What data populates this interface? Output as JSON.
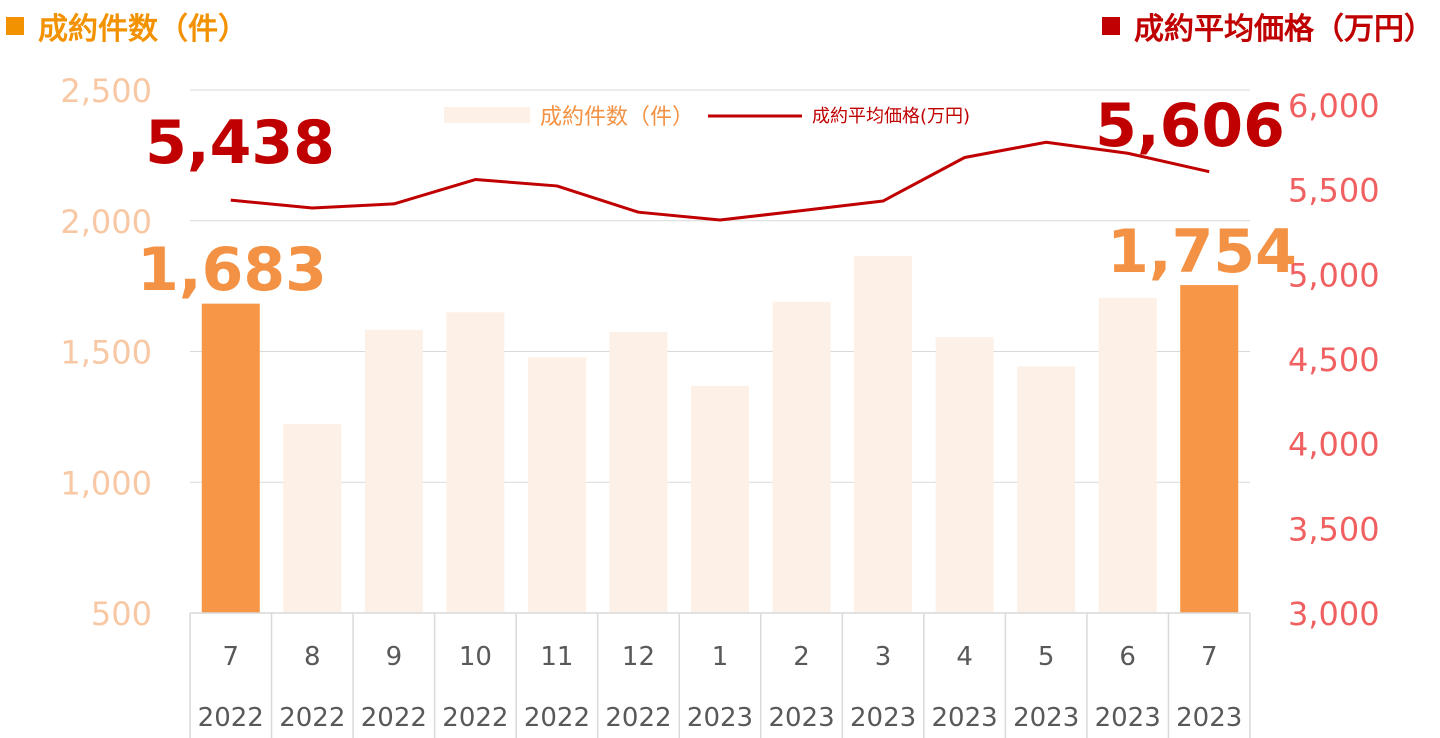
{
  "header_left": {
    "label": "成約件数（件）",
    "color": "#f39200"
  },
  "header_right": {
    "label": "成約平均価格（万円）",
    "color": "#c00000"
  },
  "colors": {
    "bar_highlight": "#f79646",
    "bar_light": "#fdf0e6",
    "line": "#c00000",
    "left_tick": "#f8c8a4",
    "right_tick": "#f06060",
    "grid": "#d9d9d9",
    "category_text": "#595959",
    "bar_label": "#f39244",
    "line_label": "#c00000"
  },
  "chart_data": {
    "type": "bar+line",
    "categories": [
      "7",
      "8",
      "9",
      "10",
      "11",
      "12",
      "1",
      "2",
      "3",
      "4",
      "5",
      "6",
      "7"
    ],
    "years": [
      "2022",
      "2022",
      "2022",
      "2022",
      "2022",
      "2022",
      "2023",
      "2023",
      "2023",
      "2023",
      "2023",
      "2023",
      "2023"
    ],
    "series": [
      {
        "name": "成約件数（件）",
        "type": "bar",
        "axis": "left",
        "values": [
          1683,
          1222,
          1583,
          1650,
          1478,
          1575,
          1368,
          1690,
          1865,
          1555,
          1443,
          1705,
          1754
        ],
        "highlight": [
          true,
          false,
          false,
          false,
          false,
          false,
          false,
          false,
          false,
          false,
          false,
          false,
          true
        ]
      },
      {
        "name": "成約平均価格(万円)",
        "type": "line",
        "axis": "right",
        "values": [
          5438,
          5392,
          5416,
          5560,
          5522,
          5367,
          5321,
          5376,
          5433,
          5690,
          5780,
          5715,
          5606
        ]
      }
    ],
    "left_axis": {
      "range": [
        500,
        2500
      ],
      "ticks": [
        "500",
        "1,000",
        "1,500",
        "2,000",
        "2,500"
      ],
      "tick_values": [
        500,
        1000,
        1500,
        2000,
        2500
      ]
    },
    "right_axis": {
      "range": [
        3000,
        6000
      ],
      "ticks": [
        "3,000",
        "3,500",
        "4,000",
        "4,500",
        "5,000",
        "5,500",
        "6,000"
      ],
      "tick_values": [
        3000,
        3500,
        4000,
        4500,
        5000,
        5500,
        6000
      ]
    },
    "data_labels": {
      "bar_first": "1,683",
      "bar_last": "1,754",
      "line_first": "5,438",
      "line_last": "5,606"
    },
    "legend": {
      "position": "top-center"
    },
    "grid": true
  }
}
